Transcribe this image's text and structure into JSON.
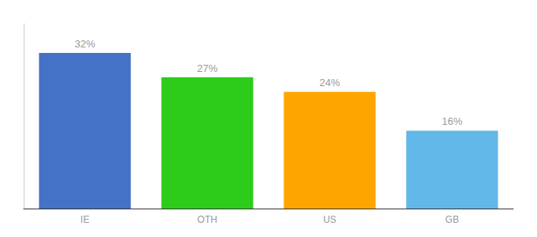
{
  "chart_data": {
    "type": "bar",
    "categories": [
      "IE",
      "OTH",
      "US",
      "GB"
    ],
    "values": [
      32,
      27,
      24,
      16
    ],
    "value_labels": [
      "32%",
      "27%",
      "24%",
      "16%"
    ],
    "colors": [
      "#4472c4",
      "#2ecc1a",
      "#ffa500",
      "#62b8e8"
    ],
    "ylim": [
      0,
      38
    ],
    "yticks": [],
    "grid": false,
    "data_labels": true,
    "tick_labels": "x"
  }
}
